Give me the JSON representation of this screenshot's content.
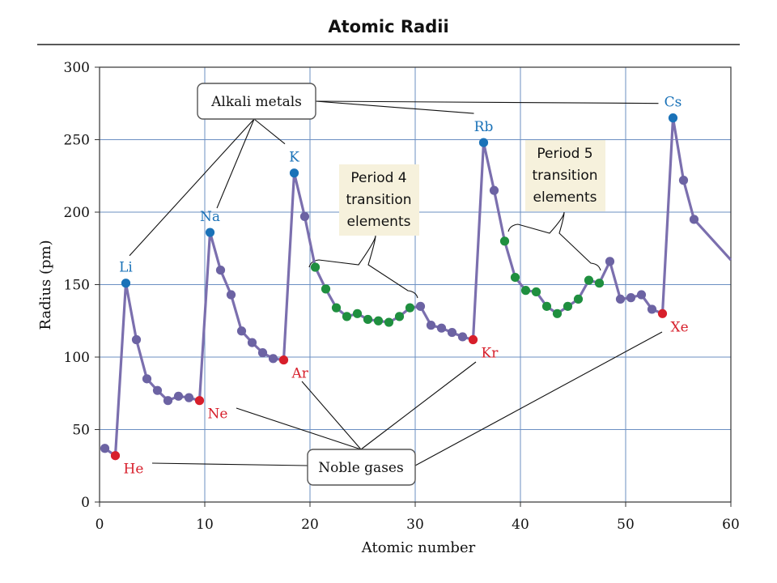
{
  "chart_data": {
    "type": "line",
    "title": "Atomic Radii",
    "xlabel": "Atomic number",
    "ylabel": "Radius (pm)",
    "xlim": [
      0,
      60
    ],
    "ylim": [
      0,
      300
    ],
    "xticks": [
      0,
      10,
      20,
      30,
      40,
      50,
      60
    ],
    "yticks": [
      0,
      50,
      100,
      150,
      200,
      250,
      300
    ],
    "grid": true,
    "line_color": "#7b6fae",
    "colors": {
      "alkali": "#1a72b8",
      "noble": "#d71f2b",
      "transition": "#1f8f3f",
      "other": "#6c63a3",
      "box_fill": "#f6f1dc"
    },
    "series": [
      {
        "points": [
          {
            "x": 1,
            "y": 37,
            "group": "other"
          },
          {
            "x": 2,
            "y": 32,
            "group": "noble",
            "label": "He"
          },
          {
            "x": 3,
            "y": 151,
            "group": "alkali",
            "label": "Li"
          },
          {
            "x": 4,
            "y": 112,
            "group": "other"
          },
          {
            "x": 5,
            "y": 85,
            "group": "other"
          },
          {
            "x": 6,
            "y": 77,
            "group": "other"
          },
          {
            "x": 7,
            "y": 70,
            "group": "other"
          },
          {
            "x": 8,
            "y": 73,
            "group": "other"
          },
          {
            "x": 9,
            "y": 72,
            "group": "other"
          },
          {
            "x": 10,
            "y": 70,
            "group": "noble",
            "label": "Ne"
          },
          {
            "x": 11,
            "y": 186,
            "group": "alkali",
            "label": "Na"
          },
          {
            "x": 12,
            "y": 160,
            "group": "other"
          },
          {
            "x": 13,
            "y": 143,
            "group": "other"
          },
          {
            "x": 14,
            "y": 118,
            "group": "other"
          },
          {
            "x": 15,
            "y": 110,
            "group": "other"
          },
          {
            "x": 16,
            "y": 103,
            "group": "other"
          },
          {
            "x": 17,
            "y": 99,
            "group": "other"
          },
          {
            "x": 18,
            "y": 98,
            "group": "noble",
            "label": "Ar"
          },
          {
            "x": 19,
            "y": 227,
            "group": "alkali",
            "label": "K"
          },
          {
            "x": 20,
            "y": 197,
            "group": "other"
          },
          {
            "x": 21,
            "y": 162,
            "group": "transition"
          },
          {
            "x": 22,
            "y": 147,
            "group": "transition"
          },
          {
            "x": 23,
            "y": 134,
            "group": "transition"
          },
          {
            "x": 24,
            "y": 128,
            "group": "transition"
          },
          {
            "x": 25,
            "y": 130,
            "group": "transition"
          },
          {
            "x": 26,
            "y": 126,
            "group": "transition"
          },
          {
            "x": 27,
            "y": 125,
            "group": "transition"
          },
          {
            "x": 28,
            "y": 124,
            "group": "transition"
          },
          {
            "x": 29,
            "y": 128,
            "group": "transition"
          },
          {
            "x": 30,
            "y": 134,
            "group": "transition"
          },
          {
            "x": 31,
            "y": 135,
            "group": "other"
          },
          {
            "x": 32,
            "y": 122,
            "group": "other"
          },
          {
            "x": 33,
            "y": 120,
            "group": "other"
          },
          {
            "x": 34,
            "y": 117,
            "group": "other"
          },
          {
            "x": 35,
            "y": 114,
            "group": "other"
          },
          {
            "x": 36,
            "y": 112,
            "group": "noble",
            "label": "Kr"
          },
          {
            "x": 37,
            "y": 248,
            "group": "alkali",
            "label": "Rb"
          },
          {
            "x": 38,
            "y": 215,
            "group": "other"
          },
          {
            "x": 39,
            "y": 180,
            "group": "transition"
          },
          {
            "x": 40,
            "y": 155,
            "group": "transition"
          },
          {
            "x": 41,
            "y": 146,
            "group": "transition"
          },
          {
            "x": 42,
            "y": 145,
            "group": "transition"
          },
          {
            "x": 43,
            "y": 135,
            "group": "transition"
          },
          {
            "x": 44,
            "y": 130,
            "group": "transition"
          },
          {
            "x": 45,
            "y": 135,
            "group": "transition"
          },
          {
            "x": 46,
            "y": 140,
            "group": "transition"
          },
          {
            "x": 47,
            "y": 153,
            "group": "transition"
          },
          {
            "x": 48,
            "y": 151,
            "group": "transition"
          },
          {
            "x": 49,
            "y": 166,
            "group": "other"
          },
          {
            "x": 50,
            "y": 140,
            "group": "other"
          },
          {
            "x": 51,
            "y": 141,
            "group": "other"
          },
          {
            "x": 52,
            "y": 143,
            "group": "other"
          },
          {
            "x": 53,
            "y": 133,
            "group": "other"
          },
          {
            "x": 54,
            "y": 130,
            "group": "noble",
            "label": "Xe"
          },
          {
            "x": 55,
            "y": 265,
            "group": "alkali",
            "label": "Cs"
          },
          {
            "x": 56,
            "y": 222,
            "group": "other"
          },
          {
            "x": 57,
            "y": 195,
            "group": "other"
          },
          {
            "x": 60,
            "y": 167,
            "group": "none"
          }
        ]
      }
    ],
    "annotations": {
      "alkali_box": {
        "lines": [
          "Alkali metals"
        ]
      },
      "noble_box": {
        "lines": [
          "Noble gases"
        ]
      },
      "period4_box": {
        "lines": [
          "Period 4",
          "transition",
          "elements"
        ]
      },
      "period5_box": {
        "lines": [
          "Period 5",
          "transition",
          "elements"
        ]
      }
    }
  }
}
